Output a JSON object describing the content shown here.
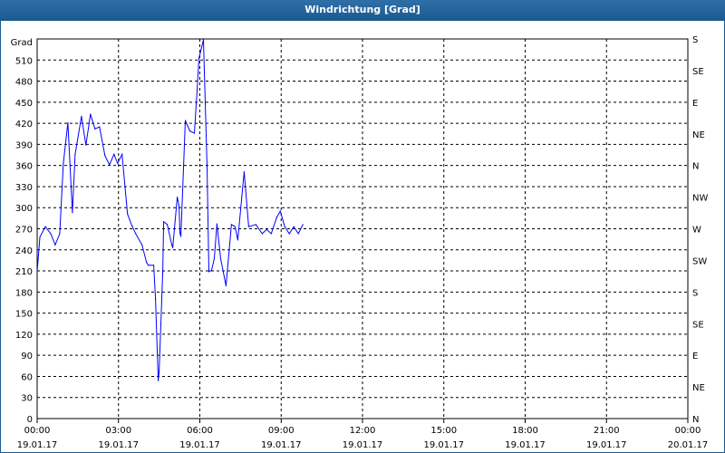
{
  "window": {
    "title": "Windrichtung [Grad]"
  },
  "chart_data": {
    "type": "line",
    "title": "Windrichtung [Grad]",
    "ylabel": "Grad",
    "ylim": [
      0,
      540
    ],
    "yticks": [
      0,
      30,
      60,
      90,
      120,
      150,
      180,
      210,
      240,
      270,
      300,
      330,
      360,
      390,
      420,
      450,
      480,
      510
    ],
    "y2ticks": [
      {
        "value": 0,
        "label": "N"
      },
      {
        "value": 45,
        "label": "NE"
      },
      {
        "value": 90,
        "label": "E"
      },
      {
        "value": 135,
        "label": "SE"
      },
      {
        "value": 180,
        "label": "S"
      },
      {
        "value": 225,
        "label": "SW"
      },
      {
        "value": 270,
        "label": "W"
      },
      {
        "value": 315,
        "label": "NW"
      },
      {
        "value": 360,
        "label": "N"
      },
      {
        "value": 405,
        "label": "NE"
      },
      {
        "value": 450,
        "label": "E"
      },
      {
        "value": 495,
        "label": "SE"
      },
      {
        "value": 540,
        "label": "S"
      }
    ],
    "xlim": [
      "19.01.17 00:00",
      "20.01.17 00:00"
    ],
    "xticks": [
      {
        "time": "00:00",
        "date": "19.01.17"
      },
      {
        "time": "03:00",
        "date": "19.01.17"
      },
      {
        "time": "06:00",
        "date": "19.01.17"
      },
      {
        "time": "09:00",
        "date": "19.01.17"
      },
      {
        "time": "12:00",
        "date": "19.01.17"
      },
      {
        "time": "15:00",
        "date": "19.01.17"
      },
      {
        "time": "18:00",
        "date": "19.01.17"
      },
      {
        "time": "21:00",
        "date": "19.01.17"
      },
      {
        "time": "00:00",
        "date": "20.01.17"
      }
    ],
    "grid": true,
    "line_color": "#0000ff",
    "x": [
      "00:00",
      "00:06",
      "00:18",
      "00:30",
      "00:40",
      "00:50",
      "00:58",
      "01:08",
      "01:18",
      "01:24",
      "01:38",
      "01:48",
      "01:58",
      "02:08",
      "02:18",
      "02:30",
      "02:40",
      "02:50",
      "02:58",
      "03:08",
      "03:20",
      "03:30",
      "03:38",
      "03:52",
      "04:02",
      "04:06",
      "04:18",
      "04:22",
      "04:28",
      "04:30",
      "04:38",
      "04:40",
      "04:48",
      "04:58",
      "05:00",
      "05:10",
      "05:14",
      "05:16",
      "05:18",
      "05:28",
      "05:38",
      "05:48",
      "05:54",
      "05:58",
      "06:08",
      "06:16",
      "06:20",
      "06:26",
      "06:32",
      "06:38",
      "06:46",
      "06:58",
      "07:10",
      "07:18",
      "07:24",
      "07:38",
      "07:48",
      "08:04",
      "08:18",
      "08:28",
      "08:38",
      "08:50",
      "08:58",
      "09:08",
      "09:18",
      "09:28",
      "09:38",
      "09:48"
    ],
    "values": [
      209,
      258,
      273,
      263,
      247,
      263,
      363,
      421,
      293,
      376,
      430,
      389,
      433,
      412,
      415,
      374,
      361,
      376,
      363,
      376,
      291,
      274,
      263,
      247,
      222,
      218,
      218,
      170,
      54,
      67,
      209,
      280,
      276,
      247,
      243,
      315,
      302,
      264,
      259,
      424,
      409,
      406,
      467,
      512,
      539,
      357,
      209,
      211,
      228,
      277,
      228,
      189,
      276,
      273,
      254,
      351,
      273,
      276,
      263,
      269,
      263,
      286,
      295,
      273,
      263,
      273,
      263,
      276
    ]
  }
}
